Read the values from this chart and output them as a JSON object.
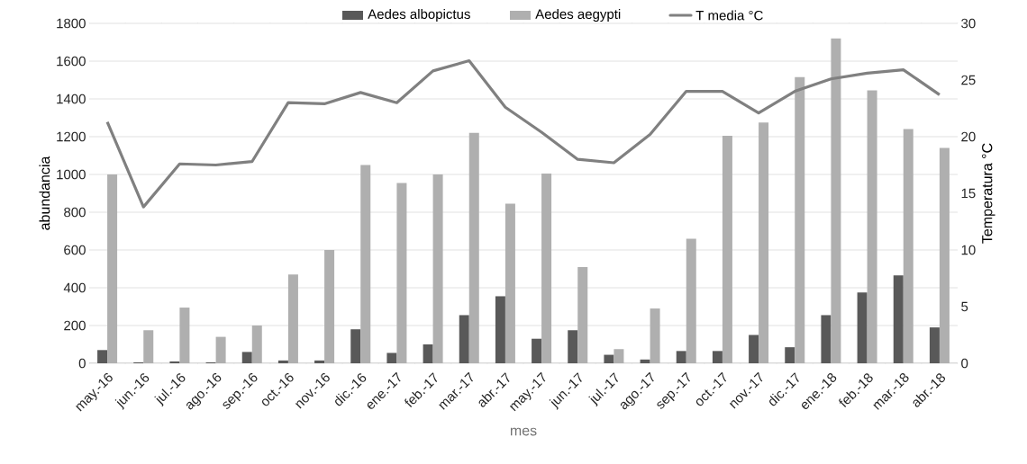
{
  "chart_data": {
    "type": "bar",
    "xlabel": "mes",
    "ylabel": "abundancia",
    "y2label": "Temperatura °C",
    "categories": [
      "may.-16",
      "jun.-16",
      "jul.-16",
      "ago.-16",
      "sep.-16",
      "oct.-16",
      "nov.-16",
      "dic.-16",
      "ene.-17",
      "feb.-17",
      "mar.-17",
      "abr.-17",
      "may.-17",
      "jun.-17",
      "jul.-17",
      "ago.-17",
      "sep.-17",
      "oct.-17",
      "nov.-17",
      "dic.-17",
      "ene.-18",
      "feb.-18",
      "mar.-18",
      "abr.-18"
    ],
    "series": [
      {
        "name": "Aedes albopictus",
        "color": "#595959",
        "values": [
          70,
          5,
          10,
          5,
          60,
          15,
          15,
          180,
          55,
          100,
          255,
          355,
          130,
          175,
          45,
          20,
          65,
          65,
          150,
          85,
          255,
          375,
          465,
          190
        ]
      },
      {
        "name": "Aedes aegypti",
        "color": "#afafaf",
        "values": [
          1000,
          175,
          295,
          140,
          200,
          470,
          600,
          1050,
          955,
          1000,
          1220,
          845,
          1005,
          510,
          75,
          290,
          660,
          1205,
          1275,
          1515,
          1720,
          1445,
          1240,
          1140
        ]
      },
      {
        "name": "T media °C",
        "color": "#808080",
        "type": "line",
        "axis": "y2",
        "values": [
          21.3,
          13.8,
          17.6,
          17.5,
          17.8,
          23.0,
          22.9,
          23.9,
          23.0,
          25.8,
          26.7,
          22.6,
          20.4,
          18.0,
          17.7,
          20.2,
          24.0,
          24.0,
          22.1,
          24.0,
          25.1,
          25.6,
          25.9,
          23.7
        ]
      }
    ],
    "ylim": [
      0,
      1800
    ],
    "yticks": [
      0,
      200,
      400,
      600,
      800,
      1000,
      1200,
      1400,
      1600,
      1800
    ],
    "y2lim": [
      0,
      30
    ],
    "y2ticks": [
      0,
      5,
      10,
      15,
      20,
      25,
      30
    ],
    "grid": "y",
    "legend": "top"
  }
}
